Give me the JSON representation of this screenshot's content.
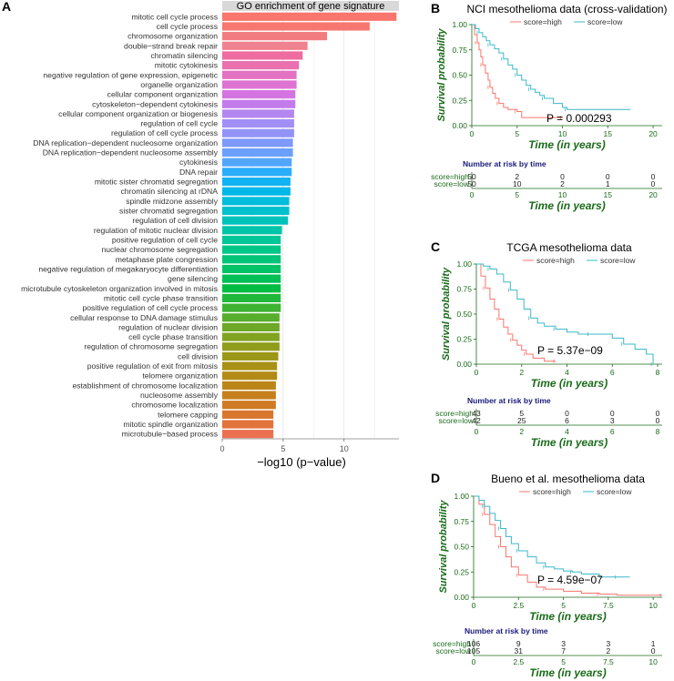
{
  "chart_data": [
    {
      "id": "A",
      "type": "bar",
      "orientation": "horizontal",
      "title": "GO enrichment of gene signature",
      "xlabel": "−log10 (p−value)",
      "xlim": [
        0,
        14.5
      ],
      "xticks": [
        0,
        5,
        10
      ],
      "grid": true,
      "categories": [
        "mitotic cell cycle process",
        "cell cycle process",
        "chromosome organization",
        "double−strand break repair",
        "chromatin silencing",
        "mitotic cytokinesis",
        "negative regulation of gene expression, epigenetic",
        "organelle organization",
        "cellular component organization",
        "cytoskeleton−dependent cytokinesis",
        "cellular component organization or biogenesis",
        "regulation of cell cycle",
        "regulation of cell cycle process",
        "DNA replication−dependent nucleosome organization",
        "DNA replication−dependent nucleosome assembly",
        "cytokinesis",
        "DNA repair",
        "mitotic sister chromatid segregation",
        "chromatin silencing at rDNA",
        "spindle midzone assembly",
        "sister chromatid segregation",
        "regulation of cell division",
        "regulation of mitotic nuclear division",
        "positive regulation of cell cycle",
        "nuclear chromosome segregation",
        "metaphase plate congression",
        "negative regulation of megakaryocyte differentiation",
        "gene silencing",
        "microtubule cytoskeleton organization involved in mitosis",
        "mitotic cell cycle phase transition",
        "positive regulation of cell cycle process",
        "cellular response to DNA damage stimulus",
        "regulation of nuclear division",
        "cell cycle phase transition",
        "regulation of chromosome segregation",
        "cell division",
        "positive regulation of exit from mitosis",
        "telomere organization",
        "establishment of chromosome localization",
        "nucleosome assembly",
        "chromosome localization",
        "telomere capping",
        "mitotic spindle organization",
        "microtubule−based process"
      ],
      "values": [
        14.3,
        12.1,
        8.6,
        7.0,
        6.6,
        6.3,
        6.1,
        6.1,
        6.0,
        6.0,
        5.9,
        5.9,
        5.9,
        5.8,
        5.8,
        5.7,
        5.7,
        5.6,
        5.6,
        5.5,
        5.5,
        5.4,
        4.9,
        4.8,
        4.8,
        4.8,
        4.8,
        4.8,
        4.8,
        4.8,
        4.8,
        4.7,
        4.7,
        4.7,
        4.7,
        4.6,
        4.5,
        4.5,
        4.4,
        4.4,
        4.4,
        4.2,
        4.2,
        4.2
      ],
      "colors": [
        "#F8766D",
        "#F6776F",
        "#F37C80",
        "#F0818F",
        "#EE6CA0",
        "#EA70B0",
        "#E472C2",
        "#DD73D2",
        "#D374E1",
        "#C37BEC",
        "#B387F0",
        "#A28FF5",
        "#9393F7",
        "#7E99FA",
        "#6AA0FC",
        "#53A6FD",
        "#2AADFA",
        "#12B3F2",
        "#00B8E8",
        "#00BDDB",
        "#00C0CD",
        "#00C2BB",
        "#00C4A8",
        "#00C698",
        "#00C687",
        "#00C477",
        "#00C266",
        "#00BF55",
        "#00BC43",
        "#1FB83A",
        "#3EB332",
        "#58AE2C",
        "#6DA826",
        "#80A320",
        "#909D1C",
        "#9C9718",
        "#A89116",
        "#B28B16",
        "#BC8518",
        "#C67F1C",
        "#D07A24",
        "#D9762E",
        "#E2733A",
        "#EA7150"
      ]
    },
    {
      "id": "B",
      "type": "line",
      "subtype": "kaplan-meier",
      "title": "NCI mesothelioma data (cross-validation)",
      "xlabel": "Time (in years)",
      "ylabel": "Survival probability",
      "xlim": [
        0,
        21
      ],
      "xticks": [
        0,
        5,
        10,
        15,
        20
      ],
      "ylim": [
        0,
        1
      ],
      "yticks": [
        "0.00",
        "0.25",
        "0.50",
        "0.75",
        "1.00"
      ],
      "legend_position": "top",
      "pvalue": "P = 0.000293",
      "series": [
        {
          "name": "score=high",
          "color": "#F8766D",
          "x": [
            0,
            0.3,
            0.6,
            0.8,
            1.0,
            1.2,
            1.5,
            1.8,
            2.0,
            2.3,
            2.6,
            3.0,
            3.5,
            4.0,
            5.0,
            5.5,
            7.0,
            10.0
          ],
          "y": [
            1.0,
            0.9,
            0.82,
            0.75,
            0.68,
            0.6,
            0.52,
            0.45,
            0.38,
            0.32,
            0.27,
            0.22,
            0.18,
            0.16,
            0.14,
            0.08,
            0.08,
            0.08
          ]
        },
        {
          "name": "score=low",
          "color": "#3DB8CB",
          "x": [
            0,
            0.4,
            0.8,
            1.2,
            1.6,
            2.0,
            2.5,
            3.0,
            3.5,
            4.0,
            4.5,
            5.0,
            5.5,
            6.0,
            6.5,
            7.0,
            7.5,
            8.0,
            9.0,
            10.0,
            10.5,
            17.5
          ],
          "y": [
            1.0,
            0.96,
            0.92,
            0.88,
            0.84,
            0.8,
            0.76,
            0.72,
            0.66,
            0.6,
            0.56,
            0.5,
            0.45,
            0.4,
            0.36,
            0.33,
            0.3,
            0.27,
            0.22,
            0.18,
            0.16,
            0.16
          ]
        }
      ],
      "risk_table": {
        "title": "Number at risk by time",
        "rows": [
          {
            "label": "score=high",
            "values": [
              "50",
              "2",
              "0",
              "0",
              "0"
            ]
          },
          {
            "label": "score=low",
            "values": [
              "50",
              "10",
              "2",
              "1",
              "0"
            ]
          }
        ]
      }
    },
    {
      "id": "C",
      "type": "line",
      "subtype": "kaplan-meier",
      "title": "TCGA mesothelioma data",
      "xlabel": "Time (in years)",
      "ylabel": "Survival probability",
      "xlim": [
        0,
        8.2
      ],
      "xticks": [
        0,
        2,
        4,
        6,
        8
      ],
      "ylim": [
        0,
        1
      ],
      "yticks": [
        "0.00",
        "0.25",
        "0.50",
        "0.75",
        "1.00"
      ],
      "legend_position": "top",
      "pvalue": "P = 5.37e−09",
      "series": [
        {
          "name": "score=high",
          "color": "#F8766D",
          "x": [
            0,
            0.2,
            0.4,
            0.6,
            0.8,
            1.0,
            1.2,
            1.4,
            1.6,
            1.8,
            2.0,
            2.2,
            2.5,
            3.0,
            3.5
          ],
          "y": [
            1.0,
            0.88,
            0.76,
            0.65,
            0.55,
            0.45,
            0.37,
            0.3,
            0.24,
            0.19,
            0.14,
            0.1,
            0.06,
            0.03,
            0.03
          ]
        },
        {
          "name": "score=low",
          "color": "#3DB8CB",
          "x": [
            0,
            0.3,
            0.6,
            0.9,
            1.2,
            1.5,
            1.8,
            2.1,
            2.4,
            2.7,
            3.0,
            3.5,
            4.0,
            4.5,
            5.0,
            5.5,
            6.0,
            6.5,
            7.0,
            7.5,
            7.8
          ],
          "y": [
            1.0,
            0.98,
            0.95,
            0.9,
            0.82,
            0.74,
            0.65,
            0.55,
            0.46,
            0.41,
            0.38,
            0.35,
            0.32,
            0.3,
            0.3,
            0.3,
            0.26,
            0.2,
            0.15,
            0.1,
            0.0
          ]
        }
      ],
      "risk_table": {
        "title": "Number at risk by time",
        "rows": [
          {
            "label": "score=high",
            "values": [
              "43",
              "5",
              "0",
              "0",
              "0"
            ]
          },
          {
            "label": "score=low",
            "values": [
              "42",
              "25",
              "6",
              "3",
              "0"
            ]
          }
        ]
      }
    },
    {
      "id": "D",
      "type": "line",
      "subtype": "kaplan-meier",
      "title": "Bueno et al. mesothelioma data",
      "xlabel": "Time (in years)",
      "ylabel": "Survival probability",
      "xlim": [
        0,
        10.5
      ],
      "xticks": [
        "0",
        "2.5",
        "5",
        "7.5",
        "10"
      ],
      "ylim": [
        0,
        1
      ],
      "yticks": [
        "0.00",
        "0.25",
        "0.50",
        "0.75",
        "1.00"
      ],
      "legend_position": "top",
      "pvalue": "P = 4.59e−07",
      "series": [
        {
          "name": "score=high",
          "color": "#F8766D",
          "x": [
            0,
            0.3,
            0.6,
            0.9,
            1.2,
            1.5,
            1.8,
            2.1,
            2.5,
            3.0,
            3.5,
            4.0,
            5.0,
            6.0,
            7.0,
            8.0,
            9.0,
            10.5
          ],
          "y": [
            1.0,
            0.92,
            0.82,
            0.72,
            0.6,
            0.5,
            0.4,
            0.3,
            0.22,
            0.15,
            0.1,
            0.08,
            0.06,
            0.04,
            0.03,
            0.02,
            0.02,
            0.02
          ]
        },
        {
          "name": "score=low",
          "color": "#3DB8CB",
          "x": [
            0,
            0.3,
            0.6,
            0.9,
            1.2,
            1.5,
            1.8,
            2.1,
            2.5,
            3.0,
            3.5,
            4.0,
            4.5,
            5.0,
            5.5,
            6.0,
            7.0,
            8.0,
            8.7
          ],
          "y": [
            1.0,
            0.96,
            0.9,
            0.83,
            0.76,
            0.68,
            0.6,
            0.53,
            0.46,
            0.4,
            0.34,
            0.3,
            0.28,
            0.26,
            0.25,
            0.23,
            0.2,
            0.2,
            0.2
          ]
        }
      ],
      "risk_table": {
        "title": "Number at risk by time",
        "rows": [
          {
            "label": "score=high",
            "values": [
              "106",
              "9",
              "3",
              "3",
              "1"
            ]
          },
          {
            "label": "score=low",
            "values": [
              "105",
              "31",
              "7",
              "2",
              "0"
            ]
          }
        ]
      }
    }
  ]
}
